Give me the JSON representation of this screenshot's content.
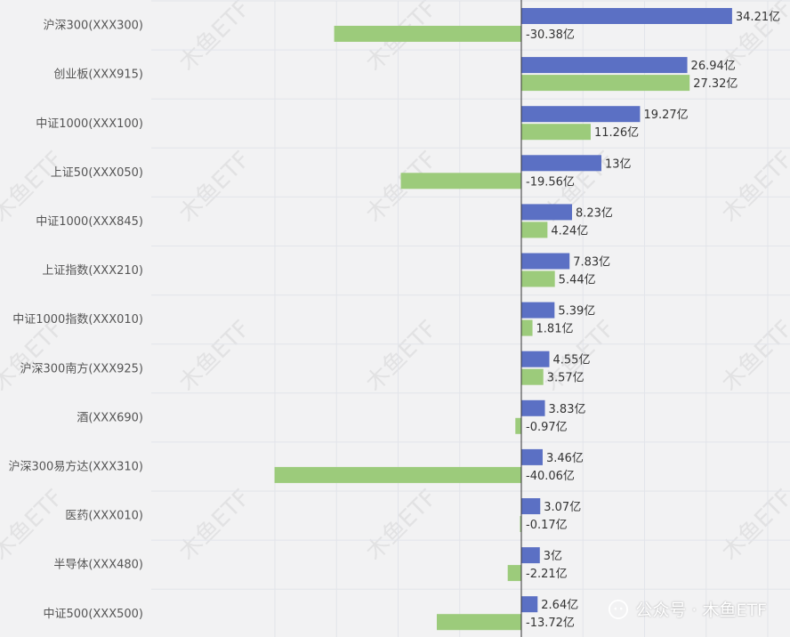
{
  "watermark": "木鱼ETF",
  "credit": "公众号 · 木鱼ETF",
  "colors": {
    "series1": "#5b70c4",
    "series2": "#9ccb7b",
    "grid": "#e2e4ea",
    "axis": "#333333",
    "label": "#333333",
    "category": "#555555"
  },
  "chart_data": {
    "type": "bar",
    "orientation": "horizontal",
    "categories": [
      "沪深300(XXX300)",
      "创业板(XXX915)",
      "中证1000(XXX100)",
      "上证50(XXX050)",
      "中证1000(XXX845)",
      "上证指数(XXX210)",
      "中证1000指数(XXX010)",
      "沪深300南方(XXX925)",
      "酒(XXX690)",
      "沪深300易方达(XXX310)",
      "医药(XXX010)",
      "半导体(XXX480)",
      "中证500(XXX500)"
    ],
    "series": [
      {
        "values": [
          34.21,
          26.94,
          19.27,
          13,
          8.23,
          7.83,
          5.39,
          4.55,
          3.83,
          3.46,
          3.07,
          3,
          2.64
        ],
        "labels": [
          "34.21亿",
          "26.94亿",
          "19.27亿",
          "13亿",
          "8.23亿",
          "7.83亿",
          "5.39亿",
          "4.55亿",
          "3.83亿",
          "3.46亿",
          "3.07亿",
          "3亿",
          "2.64亿"
        ]
      },
      {
        "values": [
          -30.38,
          27.32,
          11.26,
          -19.56,
          4.24,
          5.44,
          1.81,
          3.57,
          -0.97,
          -40.06,
          -0.17,
          -2.21,
          -13.72
        ],
        "labels": [
          "-30.38亿",
          "27.32亿",
          "11.26亿",
          "-19.56亿",
          "4.24亿",
          "5.44亿",
          "1.81亿",
          "3.57亿",
          "-0.97亿",
          "-40.06亿",
          "-0.17亿",
          "-2.21亿",
          "-13.72亿"
        ]
      }
    ],
    "xlim": [
      -40,
      40
    ],
    "grid": true
  }
}
